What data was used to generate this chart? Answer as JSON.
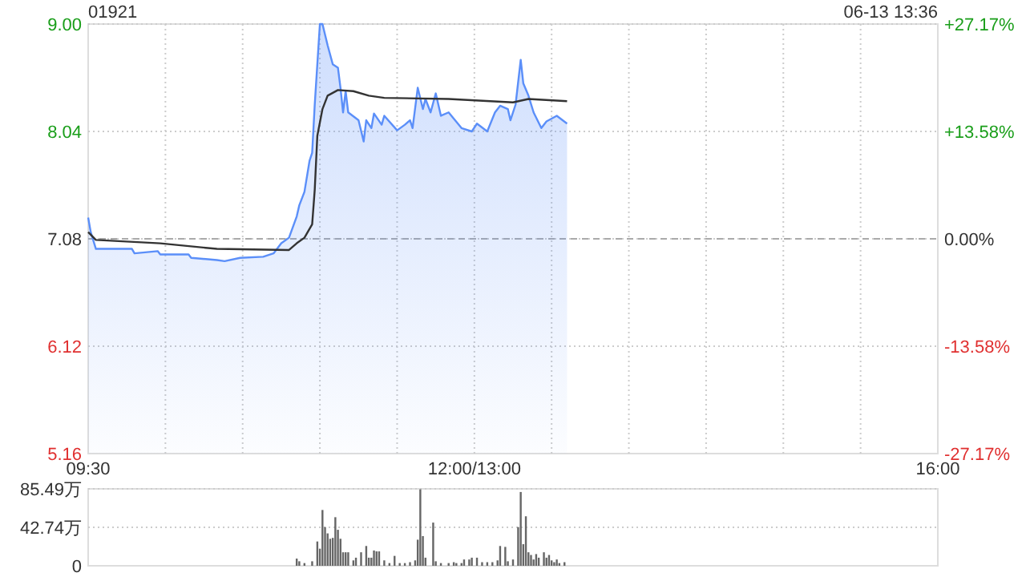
{
  "chart_data": [
    {
      "type": "line",
      "title": "01921",
      "annotations": [
        "06-13 13:36"
      ],
      "categories": [
        "09:30",
        null,
        null,
        null,
        null,
        null,
        null,
        null,
        null,
        null,
        null,
        null,
        null,
        null,
        null,
        null,
        null,
        null,
        null,
        null,
        null,
        null,
        null,
        null,
        null,
        null,
        null,
        null,
        null,
        null,
        null,
        null,
        null,
        null,
        null,
        null,
        null,
        null,
        null,
        null,
        null,
        null,
        null,
        null,
        null,
        null,
        null,
        null,
        null,
        null,
        null,
        null,
        null,
        null,
        null,
        null,
        null,
        null,
        null,
        null,
        null,
        null,
        null,
        null,
        null,
        null,
        null,
        null,
        null,
        null,
        null,
        null,
        null,
        null,
        null,
        null,
        null,
        null,
        null,
        null,
        null,
        null,
        null,
        null,
        null,
        null,
        null,
        null,
        null,
        null,
        null,
        null,
        null,
        null,
        null,
        null,
        null,
        null,
        null,
        null,
        null,
        null,
        null,
        null,
        null,
        null,
        null,
        null,
        null,
        null,
        null,
        null,
        null,
        null,
        null,
        null,
        null,
        null,
        null,
        null,
        null,
        null,
        null,
        null,
        null,
        null,
        null,
        null,
        null,
        null,
        null,
        null,
        null,
        null,
        null,
        null,
        null,
        null,
        null,
        null,
        null,
        null,
        null,
        null,
        null,
        null,
        null,
        null,
        null,
        null,
        "12:00/13:00",
        null,
        null,
        null,
        null,
        null,
        null,
        null,
        null,
        null,
        null,
        null,
        null,
        null,
        null,
        null,
        null,
        null,
        null,
        null,
        null,
        null,
        null,
        null,
        null,
        null,
        null,
        null,
        null,
        null,
        null,
        null,
        null,
        null,
        null,
        null,
        null,
        null,
        null,
        null,
        null,
        null,
        null,
        null,
        null,
        null,
        null,
        null,
        null,
        null,
        null,
        null,
        null,
        null,
        null,
        null,
        null,
        null,
        null,
        null,
        null,
        null,
        null,
        null,
        null,
        null,
        null,
        null,
        null,
        null,
        null,
        null,
        null,
        null,
        null,
        null,
        null,
        null,
        null,
        null,
        null,
        null,
        null,
        null,
        null,
        null,
        null,
        null,
        null,
        null,
        null,
        null,
        null,
        null,
        null,
        null,
        null,
        null,
        null,
        null,
        null,
        null,
        null,
        null,
        null,
        null,
        null,
        null,
        null,
        null,
        null,
        null,
        null,
        null,
        null,
        null,
        null,
        null,
        null,
        null,
        null,
        null,
        null,
        null,
        null,
        null,
        null,
        null,
        null,
        null,
        null,
        null,
        null,
        null,
        null,
        null,
        null,
        null,
        null,
        null,
        null,
        null,
        null,
        null,
        null,
        null,
        null,
        null,
        null,
        null,
        null,
        null,
        null,
        null,
        null,
        null,
        null,
        null,
        null,
        null,
        null,
        null,
        null,
        null,
        null,
        null,
        null,
        null,
        null,
        null,
        null,
        null,
        null,
        null,
        null,
        null,
        null,
        null,
        null,
        null,
        "16:00"
      ],
      "ylim": [
        5.16,
        9.0
      ],
      "yticks": [
        {
          "value": 5.16,
          "label": "5.16"
        },
        {
          "value": 6.12,
          "label": "6.12"
        },
        {
          "value": 7.08,
          "label": "7.08"
        },
        {
          "value": 8.04,
          "label": "8.04"
        },
        {
          "value": 9.0,
          "label": "9.00"
        }
      ],
      "y2lim": [
        -27.17,
        27.17
      ],
      "y2ticks": [
        {
          "value": -27.17,
          "label": "-27.17%"
        },
        {
          "value": -13.58,
          "label": "-13.58%"
        },
        {
          "value": 0,
          "label": "0.00%"
        },
        {
          "value": 13.58,
          "label": "+13.58%"
        },
        {
          "value": 27.17,
          "label": "+27.17%"
        }
      ],
      "grid": true,
      "marker": "none",
      "ref_lines": [
        {
          "axis": "y",
          "value": 7.08,
          "line_style": "dashed",
          "color": "#aaaaaa"
        }
      ],
      "series": [
        {
          "type": "area",
          "color": "#5b8ff9",
          "values": [
            7.27,
            7.14,
            null,
            6.99,
            null,
            null,
            null,
            null,
            null,
            null,
            null,
            null,
            null,
            null,
            null,
            null,
            null,
            6.99,
            6.95,
            null,
            null,
            null,
            null,
            null,
            null,
            null,
            null,
            6.97,
            6.94,
            null,
            null,
            null,
            null,
            null,
            null,
            null,
            null,
            null,
            null,
            6.94,
            6.91,
            null,
            null,
            null,
            null,
            null,
            null,
            null,
            null,
            null,
            6.89,
            null,
            null,
            6.88,
            null,
            null,
            null,
            null,
            null,
            6.91,
            null,
            null,
            null,
            null,
            null,
            null,
            null,
            null,
            6.92,
            null,
            null,
            null,
            6.95,
            null,
            null,
            7.04,
            null,
            null,
            7.09,
            null,
            null,
            7.28,
            7.38,
            null,
            7.5,
            null,
            7.78,
            7.85,
            8.28,
            8.64,
            9.0,
            9.0,
            null,
            8.81,
            null,
            8.64,
            null,
            8.61,
            8.43,
            8.21,
            8.4,
            8.21,
            null,
            null,
            null,
            8.14,
            null,
            7.95,
            8.14,
            null,
            8.07,
            8.2,
            null,
            null,
            8.1,
            8.18,
            null,
            null,
            null,
            null,
            8.05,
            null,
            null,
            8.1,
            null,
            8.14,
            8.07,
            null,
            8.43,
            null,
            8.24,
            8.33,
            null,
            8.21,
            null,
            8.38,
            null,
            8.18,
            null,
            null,
            8.21,
            null,
            null,
            null,
            null,
            8.07,
            null,
            null,
            null,
            8.04,
            null,
            8.11,
            null,
            null,
            null,
            8.04,
            null,
            null,
            8.21,
            null,
            8.27,
            null,
            null,
            8.24,
            8.14,
            null,
            8.28,
            null,
            8.68,
            8.47,
            null,
            8.36,
            null,
            8.21,
            null,
            null,
            8.07,
            null,
            8.13,
            null,
            null,
            null,
            8.18,
            null,
            null,
            null,
            8.11,
            null,
            null,
            null,
            null,
            null,
            null,
            null,
            null,
            null,
            null,
            null,
            null,
            null,
            null,
            null,
            null,
            null,
            null,
            null,
            null,
            null,
            null,
            null,
            null,
            null,
            null,
            null,
            null,
            null,
            null,
            null,
            null,
            null,
            null,
            null,
            null,
            null,
            null,
            null,
            null,
            null,
            null,
            null,
            null,
            null,
            null,
            null,
            null,
            null,
            null,
            null,
            null,
            null,
            null,
            null,
            null,
            null,
            null,
            null,
            null,
            null,
            null,
            null,
            null,
            null,
            null,
            null,
            null,
            null,
            null,
            null,
            null,
            null,
            null,
            null,
            null,
            null,
            null,
            null,
            null,
            null,
            null,
            null,
            null,
            null,
            null,
            null,
            null,
            null,
            null,
            null,
            null,
            null,
            null,
            null,
            null,
            null,
            null,
            null,
            null,
            null,
            null,
            null,
            null,
            null,
            null,
            null,
            null,
            null,
            null,
            null,
            null,
            null,
            null,
            null,
            null,
            null,
            null,
            null,
            null,
            null,
            null,
            null,
            null,
            null,
            null,
            null,
            null,
            null,
            null,
            null,
            null,
            null,
            null,
            null,
            null,
            null,
            null,
            null,
            null,
            null,
            null,
            null,
            null
          ]
        },
        {
          "color": "#333333",
          "values": [
            7.14,
            null,
            null,
            7.07,
            null,
            null,
            null,
            null,
            null,
            null,
            null,
            null,
            null,
            null,
            null,
            null,
            null,
            null,
            null,
            null,
            null,
            null,
            null,
            null,
            null,
            null,
            null,
            null,
            7.04,
            null,
            null,
            null,
            null,
            null,
            null,
            null,
            null,
            null,
            null,
            null,
            null,
            null,
            null,
            null,
            null,
            null,
            null,
            null,
            null,
            null,
            6.99,
            null,
            null,
            null,
            null,
            null,
            null,
            null,
            null,
            null,
            null,
            null,
            null,
            null,
            null,
            null,
            null,
            null,
            null,
            null,
            null,
            null,
            null,
            null,
            null,
            null,
            null,
            null,
            6.98,
            null,
            null,
            7.04,
            null,
            null,
            7.09,
            null,
            null,
            7.21,
            7.52,
            8.0,
            null,
            8.24,
            null,
            8.36,
            null,
            null,
            null,
            8.41,
            null,
            null,
            null,
            null,
            null,
            8.4,
            null,
            null,
            null,
            null,
            null,
            8.36,
            null,
            null,
            null,
            null,
            null,
            8.34,
            null,
            null,
            null,
            null,
            null,
            null,
            null,
            null,
            null,
            null,
            null,
            null,
            null,
            null,
            null,
            null,
            null,
            null,
            null,
            null,
            null,
            null,
            null,
            null,
            8.33,
            null,
            null,
            null,
            null,
            null,
            null,
            null,
            null,
            null,
            null,
            null,
            null,
            null,
            null,
            null,
            null,
            null,
            null,
            null,
            null,
            null,
            null,
            null,
            null,
            8.3,
            null,
            null,
            null,
            null,
            null,
            8.33,
            null,
            null,
            null,
            null,
            null,
            null,
            null,
            null,
            null,
            null,
            null,
            null,
            null,
            null,
            8.31,
            null,
            null,
            null,
            null,
            null,
            null,
            null,
            null,
            null,
            null,
            null,
            null,
            null,
            null,
            null,
            null,
            null,
            null,
            null,
            null,
            null,
            null,
            null,
            null,
            null,
            null,
            null,
            null,
            null,
            null,
            null,
            null,
            null,
            null,
            null,
            null,
            null,
            null,
            null,
            null,
            null,
            null,
            null,
            null,
            null,
            null,
            null,
            null,
            null,
            null,
            null,
            null,
            null,
            null,
            null,
            null,
            null,
            null,
            null,
            null,
            null,
            null,
            null,
            null,
            null,
            null,
            null,
            null,
            null,
            null,
            null,
            null,
            null,
            null,
            null,
            null,
            null,
            null,
            null,
            null,
            null,
            null,
            null,
            null,
            null,
            null,
            null,
            null,
            null,
            null,
            null,
            null,
            null,
            null,
            null,
            null,
            null,
            null,
            null,
            null,
            null,
            null,
            null,
            null,
            null,
            null,
            null,
            null,
            null,
            null,
            null,
            null,
            null,
            null,
            null,
            null,
            null,
            null,
            null,
            null,
            null,
            null,
            null,
            null,
            null,
            null,
            null,
            null,
            null,
            null,
            null,
            null,
            null,
            null,
            null,
            null,
            null,
            null,
            null,
            null,
            null,
            null,
            null,
            null
          ]
        }
      ]
    },
    {
      "type": "bar",
      "tick_labels": "y",
      "ylim": [
        0,
        85.49
      ],
      "categories": [
        null,
        null,
        null,
        null,
        null,
        null,
        null,
        null,
        null,
        null,
        null,
        null,
        null,
        null,
        null,
        null,
        null,
        null,
        null,
        null,
        null,
        null,
        null,
        null,
        null,
        null,
        null,
        null,
        null,
        null,
        null,
        null,
        null,
        null,
        null,
        null,
        null,
        null,
        null,
        null,
        null,
        null,
        null,
        null,
        null,
        null,
        null,
        null,
        null,
        null,
        null,
        null,
        null,
        null,
        null,
        null,
        null,
        null,
        null,
        null,
        null,
        null,
        null,
        null,
        null,
        null,
        null,
        null,
        null,
        null,
        null,
        null,
        null,
        null,
        null,
        null,
        null,
        null,
        null,
        null,
        null,
        null,
        null,
        null,
        null,
        null,
        null,
        null,
        null,
        null,
        null,
        null,
        null,
        null,
        null,
        null,
        null,
        null,
        null,
        null,
        null,
        null,
        null,
        null,
        null,
        null,
        null,
        null,
        null,
        null,
        null,
        null,
        null,
        null,
        null,
        null,
        null,
        null,
        null,
        null,
        null,
        null,
        null,
        null,
        null,
        null,
        null,
        null,
        null,
        null,
        null,
        null,
        null,
        null,
        null,
        null,
        null,
        null,
        null,
        null,
        null,
        null,
        null,
        null,
        null,
        null,
        null,
        null,
        null,
        null,
        null,
        null,
        null,
        null,
        null,
        null,
        null,
        null,
        null,
        null,
        null,
        null,
        null,
        null,
        null,
        null,
        null,
        null,
        null,
        null,
        null,
        null,
        null,
        null,
        null,
        null,
        null,
        null,
        null,
        null,
        null,
        null,
        null,
        null,
        null,
        null,
        null,
        null,
        null,
        null,
        null,
        null,
        null,
        null,
        null,
        null,
        null,
        null,
        null,
        null,
        null,
        null,
        null,
        null,
        null,
        null,
        null,
        null,
        null,
        null,
        null,
        null,
        null,
        null,
        null,
        null,
        null,
        null,
        null,
        null,
        null,
        null,
        null,
        null,
        null,
        null,
        null,
        null,
        null,
        null,
        null,
        null,
        null,
        null,
        null,
        null,
        null,
        null,
        null,
        null,
        null,
        null,
        null,
        null,
        null,
        null,
        null,
        null,
        null,
        null,
        null,
        null,
        null,
        null,
        null,
        null,
        null,
        null,
        null,
        null,
        null,
        null,
        null,
        null,
        null,
        null,
        null,
        null,
        null,
        null,
        null,
        null,
        null,
        null,
        null,
        null,
        null,
        null,
        null,
        null,
        null,
        null,
        null,
        null,
        null,
        null,
        null,
        null,
        null,
        null,
        null,
        null,
        null,
        null,
        null,
        null,
        null,
        null,
        null,
        null,
        null,
        null,
        null,
        null,
        null,
        null,
        null,
        null,
        null,
        null,
        null,
        null,
        null,
        null,
        null,
        null,
        null,
        null,
        null,
        null,
        null,
        null,
        null,
        null,
        null,
        null,
        null,
        null,
        null,
        null,
        null
      ],
      "yticks": [
        {
          "value": 0,
          "label": "0"
        },
        {
          "value": 42.74,
          "label": "42.74万"
        },
        {
          "value": 85.49,
          "label": "85.49万"
        }
      ],
      "grid": "y",
      "series": [
        {
          "color": "#666666",
          "values": [
            null,
            null,
            null,
            null,
            null,
            null,
            null,
            null,
            null,
            null,
            null,
            null,
            null,
            null,
            null,
            null,
            null,
            null,
            null,
            null,
            null,
            null,
            null,
            null,
            null,
            null,
            null,
            null,
            null,
            null,
            null,
            null,
            null,
            null,
            null,
            null,
            null,
            null,
            null,
            null,
            null,
            null,
            null,
            null,
            null,
            null,
            null,
            null,
            null,
            null,
            null,
            null,
            null,
            null,
            null,
            null,
            null,
            null,
            null,
            null,
            null,
            null,
            null,
            null,
            null,
            null,
            null,
            null,
            null,
            null,
            null,
            null,
            null,
            null,
            null,
            null,
            null,
            null,
            null,
            null,
            null,
            8,
            5,
            null,
            3,
            null,
            null,
            5,
            null,
            27,
            19,
            62,
            43,
            36,
            30,
            31,
            54,
            40,
            30,
            15,
            15,
            15,
            null,
            6,
            9,
            null,
            15,
            null,
            22,
            9,
            9,
            17,
            16,
            16,
            null,
            6,
            null,
            3,
            null,
            11,
            null,
            3,
            null,
            3,
            null,
            4,
            null,
            6,
            29,
            85,
            33,
            9,
            null,
            null,
            48,
            5,
            null,
            3,
            null,
            null,
            3,
            null,
            4,
            3,
            null,
            3,
            7,
            null,
            7,
            9,
            null,
            9,
            null,
            4,
            null,
            4,
            null,
            4,
            null,
            6,
            22,
            null,
            21,
            5,
            null,
            7,
            null,
            43,
            82,
            24,
            55,
            15,
            12,
            7,
            13,
            9,
            null,
            15,
            9,
            12,
            6,
            4,
            7,
            3,
            null,
            4,
            null,
            null,
            null,
            null,
            null,
            null,
            null,
            null,
            null,
            null,
            null,
            null,
            null,
            null,
            null,
            null,
            null,
            null,
            null,
            null,
            null,
            null,
            null,
            null,
            null,
            null,
            null,
            null,
            null,
            null,
            null,
            null,
            null,
            null,
            null,
            null,
            null,
            null,
            null,
            null,
            null,
            null,
            null,
            null,
            null,
            null,
            null,
            null,
            null,
            null,
            null,
            null,
            null,
            null,
            null,
            null,
            null,
            null,
            null,
            null,
            null,
            null,
            null,
            null,
            null,
            null,
            null,
            null,
            null,
            null,
            null,
            null,
            null,
            null,
            null,
            null,
            null,
            null,
            null,
            null,
            null,
            null,
            null,
            null,
            null,
            null,
            null,
            null,
            null,
            null,
            null,
            null,
            null,
            null,
            null,
            null,
            null,
            null,
            null,
            null,
            null,
            null,
            null,
            null,
            null,
            null,
            null,
            null,
            null,
            null,
            null,
            null,
            null,
            null,
            null,
            null,
            null,
            null,
            null,
            null,
            null,
            null,
            null,
            null,
            null,
            null,
            null,
            null,
            null,
            null,
            null,
            null,
            null,
            null,
            null,
            null,
            null,
            null,
            null,
            null,
            null,
            null,
            null,
            null,
            null
          ]
        }
      ]
    }
  ]
}
